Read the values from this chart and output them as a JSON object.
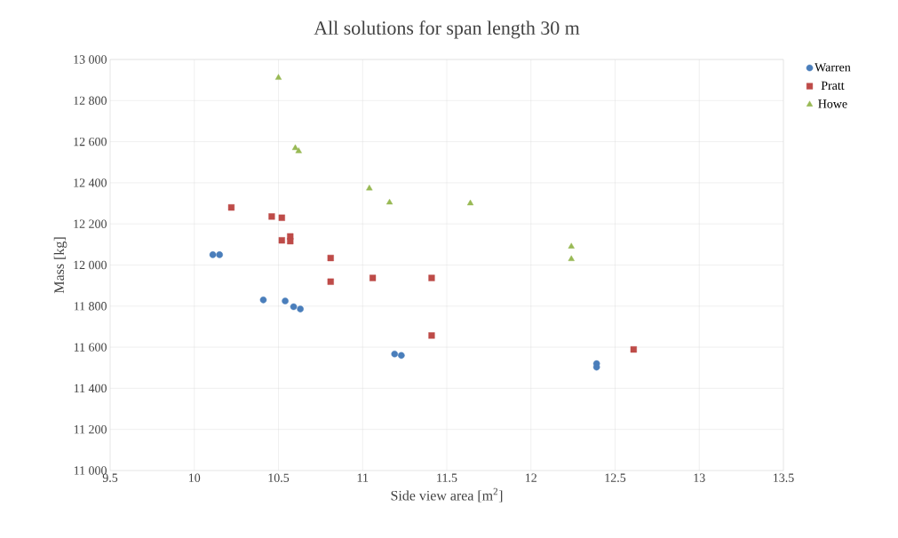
{
  "chart_data": {
    "type": "scatter",
    "title": "All solutions for span length 30 m",
    "xlabel": "Side view area [m$^{2}$]",
    "ylabel": "Mass [kg]",
    "series": [
      {
        "name": "Warren",
        "color": "#4a7ebb",
        "marker": "circle",
        "x": [
          10.11,
          10.15,
          10.41,
          10.54,
          10.59,
          10.63,
          11.19,
          11.23,
          12.39,
          12.39
        ],
        "values": [
          12050,
          12050,
          11830,
          11825,
          11797,
          11786,
          11567,
          11560,
          11520,
          11503
        ]
      },
      {
        "name": "Pratt",
        "color": "#be4b48",
        "marker": "square",
        "x": [
          10.22,
          10.46,
          10.52,
          10.52,
          10.57,
          10.57,
          10.81,
          10.81,
          11.06,
          11.41,
          11.41,
          12.61
        ],
        "values": [
          12280,
          12236,
          12230,
          12120,
          12139,
          12116,
          12034,
          11919,
          11937,
          11937,
          11657,
          11589
        ]
      },
      {
        "name": "Howe",
        "color": "#98b954",
        "marker": "triangle",
        "x": [
          10.5,
          10.6,
          10.62,
          11.04,
          11.16,
          11.64,
          12.24,
          12.24
        ],
        "values": [
          12911,
          12569,
          12554,
          12373,
          12304,
          12300,
          12090,
          12029
        ]
      }
    ],
    "xlim": [
      9.5,
      13.5
    ],
    "xticks": [
      9.5,
      10,
      10.5,
      11,
      11.5,
      12,
      12.5,
      13,
      13.5
    ],
    "ylim": [
      11000,
      13000
    ],
    "yticks": [
      {
        "value": 11000,
        "label": "11 000"
      },
      {
        "value": 11200,
        "label": "11 200"
      },
      {
        "value": 11400,
        "label": "11 400"
      },
      {
        "value": 11600,
        "label": "11 600"
      },
      {
        "value": 11800,
        "label": "11 800"
      },
      {
        "value": 12000,
        "label": "12 000"
      },
      {
        "value": 12200,
        "label": "12 200"
      },
      {
        "value": 12400,
        "label": "12 400"
      },
      {
        "value": 12600,
        "label": "12 600"
      },
      {
        "value": 12800,
        "label": "12 800"
      },
      {
        "value": 13000,
        "label": "13 000"
      }
    ],
    "grid": true,
    "legend": "right"
  }
}
